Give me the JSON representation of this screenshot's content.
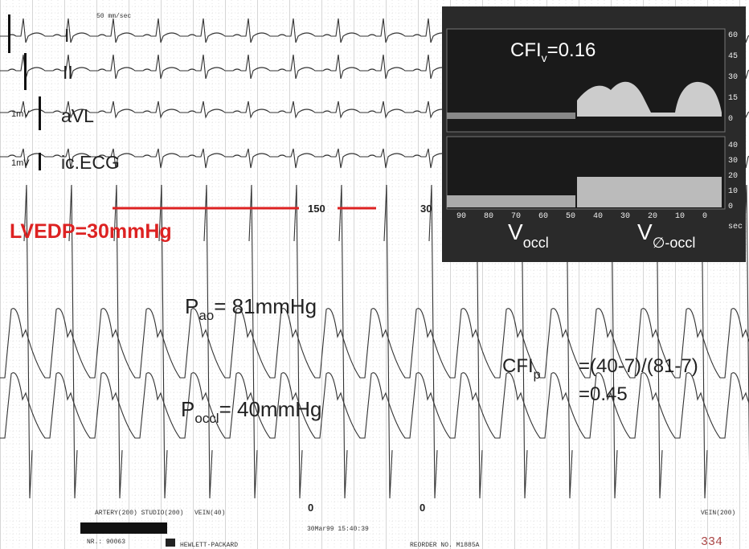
{
  "header": {
    "speed": "50 mm/sec"
  },
  "leads": [
    {
      "label": "I"
    },
    {
      "label": "II"
    },
    {
      "scale": "1mV",
      "label": "aVL"
    },
    {
      "scale": "1mV",
      "label": "ic.ECG"
    }
  ],
  "pressure_scale": {
    "upper": "150",
    "upper_right": "30",
    "zero_left": "0",
    "zero_right": "0"
  },
  "lvedp": "LVEDP=30mmHg",
  "pao": {
    "symbol": "P",
    "sub": "ao",
    "text": "= 81mmHg"
  },
  "pocc": {
    "symbol": "P",
    "sub": "occl",
    "text": "= 40mmHg"
  },
  "cfip": {
    "symbol": "CFI",
    "sub": "p",
    "formula": "=(40-7)/(81-7)",
    "result": "=0.45"
  },
  "inset": {
    "cfiv": {
      "symbol": "CFI",
      "sub": "v",
      "text": "=0.16"
    },
    "top_scale": [
      "60",
      "45",
      "30",
      "15",
      "0"
    ],
    "bottom_scale": [
      "40",
      "30",
      "20",
      "10",
      "0"
    ],
    "time_axis": [
      "90",
      "80",
      "70",
      "60",
      "50",
      "40",
      "30",
      "20",
      "10",
      "0"
    ],
    "time_unit": "sec",
    "v_occl": {
      "symbol": "V",
      "sub": "occl"
    },
    "v_nonoccl": {
      "symbol": "V",
      "sub": "∅-occl"
    }
  },
  "footer": {
    "channels": "ARTERY(200)  STUDIO(200)",
    "vein": "VEIN(40)",
    "vein_right": "VEIN(200)",
    "record": "NR.: 90063",
    "maker": "HEWLETT-PACKARD",
    "reorder": "REORDER NO. M1885A",
    "timestamp": "30Mar99  15:40:39",
    "page": "334"
  }
}
